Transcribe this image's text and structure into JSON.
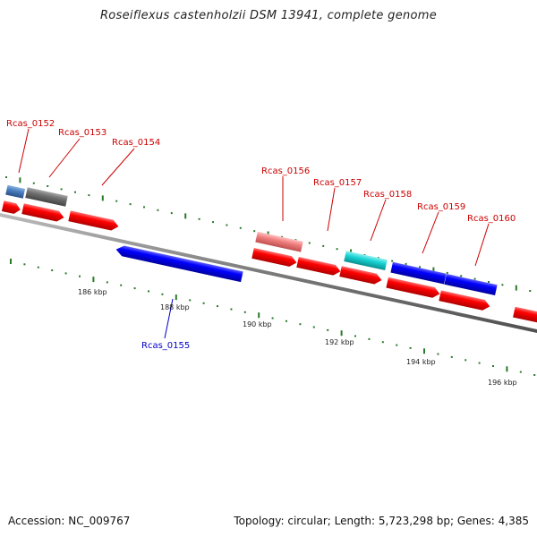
{
  "title": "Roseiflexus castenholzii DSM 13941, complete genome",
  "footer": {
    "accession": "Accession: NC_009767",
    "topology": "Topology: circular; Length: 5,723,298 bp; Genes: 4,385"
  },
  "colors": {
    "red_gene": "#ff0000",
    "blue_gene": "#0000ff",
    "steelblue_gene": "#4a80c0",
    "gray_gene": "#707070",
    "pink_gene": "#f08080",
    "cyan_gene": "#19d4d4",
    "backbone": "#808080",
    "tick": "#2a7a2a",
    "label_red": "#cc0000",
    "label_blue": "#0000cc"
  },
  "genes_top": [
    {
      "name": "Rcas_0152"
    },
    {
      "name": "Rcas_0153"
    },
    {
      "name": "Rcas_0154"
    },
    {
      "name": "Rcas_0156"
    },
    {
      "name": "Rcas_0157"
    },
    {
      "name": "Rcas_0158"
    },
    {
      "name": "Rcas_0159"
    },
    {
      "name": "Rcas_0160"
    }
  ],
  "genes_bottom": [
    {
      "name": "Rcas_0155"
    }
  ],
  "scale": {
    "ticks": [
      "186 kbp",
      "188 kbp",
      "190 kbp",
      "192 kbp",
      "194 kbp",
      "196 kbp"
    ]
  }
}
